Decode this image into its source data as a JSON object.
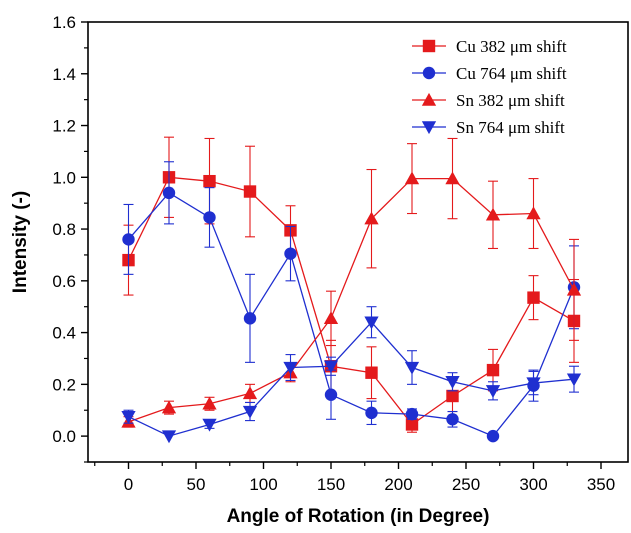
{
  "chart_data": {
    "type": "line",
    "xlabel": "Angle of Rotation (in Degree)",
    "ylabel": "Intensity (-)",
    "xlim": [
      -30,
      370
    ],
    "ylim": [
      -0.1,
      1.6
    ],
    "x_ticks": [
      0,
      50,
      100,
      150,
      200,
      250,
      300,
      350
    ],
    "y_ticks": [
      "0.0",
      "0.2",
      "0.4",
      "0.6",
      "0.8",
      "1.0",
      "1.2",
      "1.4",
      "1.6"
    ],
    "grid": false,
    "legend_position": "top-right",
    "x": [
      0,
      30,
      60,
      90,
      120,
      150,
      180,
      210,
      240,
      270,
      300,
      330
    ],
    "series": [
      {
        "name": "Cu 382 μm shift",
        "color": "#e41a1c",
        "marker": "square",
        "values": [
          0.68,
          1.0,
          0.985,
          0.945,
          0.795,
          0.27,
          0.245,
          0.045,
          0.155,
          0.255,
          0.535,
          0.445
        ],
        "errors": [
          0.135,
          0.155,
          0.165,
          0.175,
          0.095,
          0.1,
          0.1,
          0.03,
          0.06,
          0.08,
          0.085,
          0.16
        ]
      },
      {
        "name": "Cu 764 μm shift",
        "color": "#1f2fd0",
        "marker": "circle",
        "values": [
          0.76,
          0.94,
          0.845,
          0.455,
          0.705,
          0.16,
          0.09,
          0.085,
          0.065,
          0.0,
          0.195,
          0.575
        ],
        "errors": [
          0.135,
          0.12,
          0.115,
          0.17,
          0.105,
          0.095,
          0.045,
          0.02,
          0.03,
          0.0,
          0.06,
          0.16
        ]
      },
      {
        "name": "Sn 382 μm shift",
        "color": "#e41a1c",
        "marker": "triangle-up",
        "values": [
          0.055,
          0.11,
          0.125,
          0.165,
          0.245,
          0.455,
          0.84,
          0.995,
          0.995,
          0.855,
          0.86,
          0.565
        ],
        "errors": [
          0.02,
          0.025,
          0.025,
          0.035,
          0.035,
          0.105,
          0.19,
          0.135,
          0.155,
          0.13,
          0.135,
          0.195
        ]
      },
      {
        "name": "Sn 764 μm shift",
        "color": "#1f2fd0",
        "marker": "triangle-down",
        "values": [
          0.075,
          0.0,
          0.045,
          0.095,
          0.265,
          0.27,
          0.44,
          0.265,
          0.21,
          0.175,
          0.205,
          0.22
        ],
        "errors": [
          0.025,
          0.0,
          0.015,
          0.035,
          0.05,
          0.035,
          0.06,
          0.065,
          0.035,
          0.035,
          0.045,
          0.05
        ]
      }
    ]
  }
}
